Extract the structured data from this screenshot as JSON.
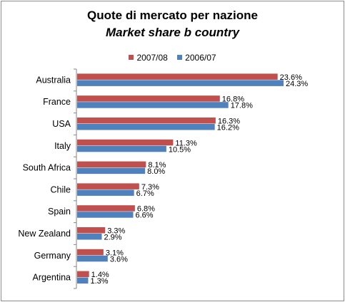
{
  "chart_data": {
    "type": "bar",
    "orientation": "horizontal",
    "title": "Quote di mercato per nazione",
    "subtitle": "Market share b country",
    "categories": [
      "Australia",
      "France",
      "USA",
      "Italy",
      "South Africa",
      "Chile",
      "Spain",
      "New Zealand",
      "Germany",
      "Argentina"
    ],
    "series": [
      {
        "name": "2007/08",
        "color": "#c0504d",
        "values": [
          23.6,
          16.8,
          16.3,
          11.3,
          8.1,
          7.3,
          6.8,
          3.3,
          3.1,
          1.4
        ],
        "labels": [
          "23.6%",
          "16.8%",
          "16.3%",
          "11.3%",
          "8.1%",
          "7.3%",
          "6.8%",
          "3.3%",
          "3.1%",
          "1.4%"
        ]
      },
      {
        "name": "2006/07",
        "color": "#4f81bd",
        "values": [
          24.3,
          17.8,
          16.2,
          10.5,
          8.0,
          6.7,
          6.6,
          2.9,
          3.6,
          1.3
        ],
        "labels": [
          "24.3%",
          "17.8%",
          "16.2%",
          "10.5%",
          "8.0%",
          "6.7%",
          "6.6%",
          "2.9%",
          "3.6%",
          "1.3%"
        ]
      }
    ],
    "xlim": [
      0,
      25
    ],
    "grid": false,
    "legend_position": "top"
  }
}
